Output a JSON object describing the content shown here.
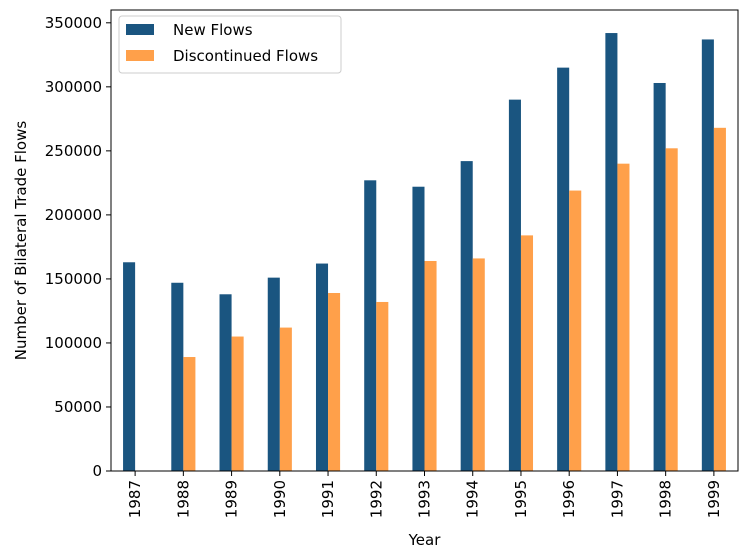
{
  "chart_data": {
    "type": "bar",
    "title": "",
    "xlabel": "Year",
    "ylabel": "Number of Bilateral Trade Flows",
    "categories": [
      "1987",
      "1988",
      "1989",
      "1990",
      "1991",
      "1992",
      "1993",
      "1994",
      "1995",
      "1996",
      "1997",
      "1998",
      "1999"
    ],
    "series": [
      {
        "name": "New Flows",
        "color": "#1a5580",
        "values": [
          163000,
          147000,
          138000,
          151000,
          162000,
          227000,
          222000,
          242000,
          290000,
          315000,
          342000,
          303000,
          337000
        ]
      },
      {
        "name": "Discontinued Flows",
        "color": "#ffa04a",
        "values": [
          0,
          89000,
          105000,
          112000,
          139000,
          132000,
          164000,
          166000,
          184000,
          219000,
          240000,
          252000,
          268000
        ]
      }
    ],
    "ylim": [
      0,
      360000
    ],
    "yticks": [
      0,
      50000,
      100000,
      150000,
      200000,
      250000,
      300000,
      350000
    ],
    "ytick_labels": [
      "0",
      "50000",
      "100000",
      "150000",
      "200000",
      "250000",
      "300000",
      "350000"
    ],
    "legend_position": "top-left",
    "grid": false
  }
}
